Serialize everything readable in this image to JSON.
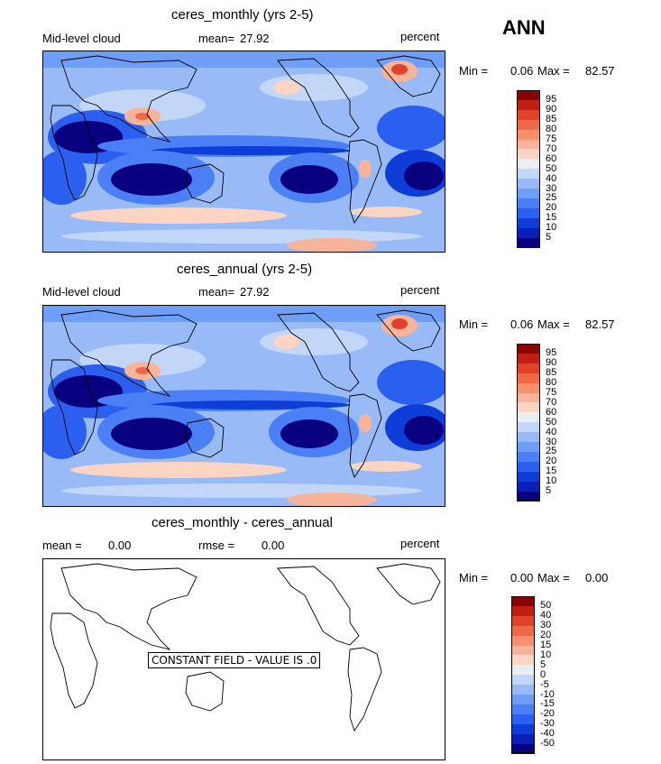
{
  "season": "ANN",
  "panels": [
    {
      "title": "ceres_monthly (yrs 2-5)",
      "left_label": "Mid-level cloud",
      "mean_label": "mean=",
      "mean_value": "27.92",
      "units": "percent",
      "min_label": "Min =",
      "min_value": "0.06",
      "max_label": "Max =",
      "max_value": "82.57"
    },
    {
      "title": "ceres_annual (yrs 2-5)",
      "left_label": "Mid-level cloud",
      "mean_label": "mean=",
      "mean_value": "27.92",
      "units": "percent",
      "min_label": "Min =",
      "min_value": "0.06",
      "max_label": "Max =",
      "max_value": "82.57"
    },
    {
      "title": "ceres_monthly - ceres_annual",
      "mean_label": "mean =",
      "mean_value": "0.00",
      "rmse_label": "rmse =",
      "rmse_value": "0.00",
      "units": "percent",
      "min_label": "Min =",
      "min_value": "0.00",
      "max_label": "Max =",
      "max_value": "0.00",
      "constant_note": "CONSTANT FIELD - VALUE IS .0"
    }
  ],
  "chart_data": [
    {
      "type": "heatmap",
      "title": "ceres_monthly (yrs 2-5)",
      "variable": "Mid-level cloud",
      "units": "percent",
      "mean": 27.92,
      "min": 0.06,
      "max": 82.57,
      "colorbar_levels": [
        5,
        10,
        15,
        20,
        25,
        30,
        40,
        50,
        60,
        70,
        75,
        80,
        85,
        90,
        95
      ]
    },
    {
      "type": "heatmap",
      "title": "ceres_annual (yrs 2-5)",
      "variable": "Mid-level cloud",
      "units": "percent",
      "mean": 27.92,
      "min": 0.06,
      "max": 82.57,
      "colorbar_levels": [
        5,
        10,
        15,
        20,
        25,
        30,
        40,
        50,
        60,
        70,
        75,
        80,
        85,
        90,
        95
      ]
    },
    {
      "type": "heatmap",
      "title": "ceres_monthly - ceres_annual",
      "units": "percent",
      "mean": 0.0,
      "rmse": 0.0,
      "min": 0.0,
      "max": 0.0,
      "constant_value": 0,
      "colorbar_levels": [
        -50,
        -40,
        -30,
        -20,
        -15,
        -10,
        -5,
        0,
        5,
        10,
        15,
        20,
        30,
        40,
        50
      ]
    }
  ],
  "colors": {
    "scale16": [
      "#08007f",
      "#0a1fb7",
      "#0f3dd8",
      "#2a5ff0",
      "#4a7ff5",
      "#6f9ef7",
      "#98bbf7",
      "#c2d6f7",
      "#e9eef3",
      "#fbd4c3",
      "#f8b49a",
      "#f58f6c",
      "#ee6a47",
      "#e0432a",
      "#c21f12",
      "#8a0404"
    ]
  }
}
